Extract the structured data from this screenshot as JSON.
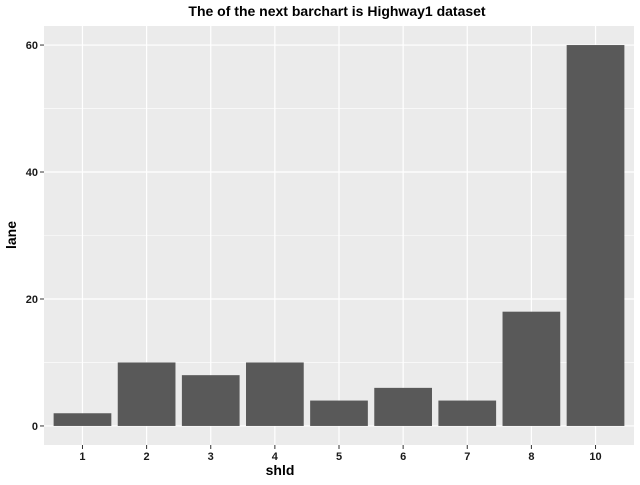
{
  "chart_data": {
    "type": "bar",
    "title": "The of the next barchart is Highway1 dataset",
    "xlabel": "shld",
    "ylabel": "lane",
    "categories": [
      "1",
      "2",
      "3",
      "4",
      "5",
      "6",
      "7",
      "8",
      "10"
    ],
    "values": [
      2,
      10,
      8,
      10,
      4,
      6,
      4,
      18,
      60
    ],
    "ylim": [
      -3,
      63
    ],
    "yticks": [
      0,
      20,
      40,
      60
    ],
    "grid": true,
    "legend": "none",
    "colors": {
      "panel_background": "#EBEBEB",
      "grid_major": "#FFFFFF",
      "bar_fill": "#595959",
      "text": "#000000",
      "tick_text": "#1A1A1A"
    }
  }
}
